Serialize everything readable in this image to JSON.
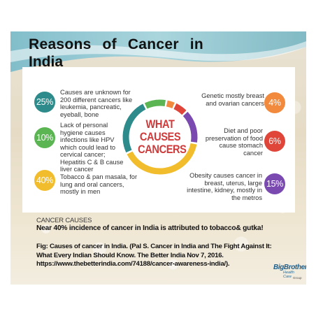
{
  "slide": {
    "title_line1": "Reasons of Cancer in",
    "title_line2": "India"
  },
  "infographic": {
    "center_words": [
      "WHAT",
      "CAUSES",
      "CANCERS"
    ],
    "colors": {
      "teal": "#2e8b8b",
      "green": "#5ab552",
      "yellow": "#f2bd2c",
      "orange": "#f28a3e",
      "red": "#e0453a",
      "purple": "#7a4ab0"
    },
    "causes_left": [
      {
        "percent": "25%",
        "text": "Causes are unknown for 200 different cancers like leukemia, pancreatic, eyeball, bone",
        "color": "#2e8b8b"
      },
      {
        "percent": "10%",
        "text": "Lack of personal hygiene causes infections like HPV which could lead to cervical cancer; Hepatitis C & B cause liver cancer",
        "color": "#5ab552"
      },
      {
        "percent": "40%",
        "text": "Tobacco & pan masala, for lung and oral cancers, mostly in men",
        "color": "#f2bd2c"
      }
    ],
    "causes_right": [
      {
        "percent": "4%",
        "text": "Genetic mostly breast and ovarian cancers",
        "color": "#f28a3e"
      },
      {
        "percent": "6%",
        "text": "Diet and poor preservation of food cause stomach cancer",
        "color": "#e0453a"
      },
      {
        "percent": "15%",
        "text": "Obesity causes cancer in breast, uterus, large intestine, kidney, mostly in the metros",
        "color": "#7a4ab0"
      }
    ],
    "donut_shares": [
      {
        "name": "yellow",
        "value": 40,
        "color": "#f2bd2c"
      },
      {
        "name": "teal",
        "value": 25,
        "color": "#2e8b8b"
      },
      {
        "name": "green",
        "value": 10,
        "color": "#5ab552"
      },
      {
        "name": "orange",
        "value": 4,
        "color": "#f28a3e"
      },
      {
        "name": "red",
        "value": 6,
        "color": "#e0453a"
      },
      {
        "name": "purple",
        "value": 15,
        "color": "#7a4ab0"
      }
    ]
  },
  "caption": {
    "label": "CANCER CAUSES",
    "main": "Near 40% incidence of cancer in India is attributed to tobacco& gutka!",
    "figure": "Fig: Causes of cancer in India. (Pal S. Cancer in India and The Fight Against It: What Every Indian Should Know. The Better India Nov 7, 2016. https://www.thebetterindia.com/74188/cancer-awareness-india/)."
  },
  "logo": {
    "main": "BigBrother",
    "sub": "Health Care",
    "tag": "Group"
  }
}
